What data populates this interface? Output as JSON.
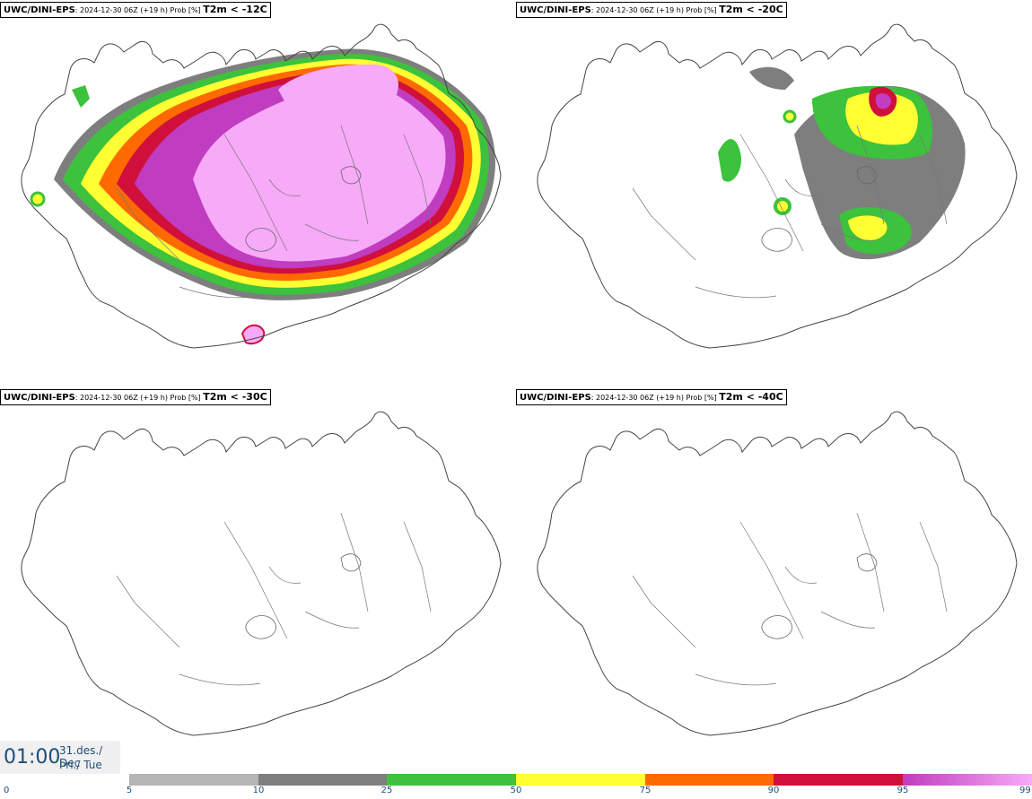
{
  "panels": [
    {
      "model": "UWC/DINI-EPS",
      "info": ": 2024-12-30 06Z (+19 h) Prob [%] ",
      "variable": "T2m < -12C"
    },
    {
      "model": "UWC/DINI-EPS",
      "info": ": 2024-12-30 06Z (+19 h) Prob [%] ",
      "variable": "T2m < -20C"
    },
    {
      "model": "UWC/DINI-EPS",
      "info": ": 2024-12-30 06Z (+19 h) Prob [%] ",
      "variable": "T2m < -30C"
    },
    {
      "model": "UWC/DINI-EPS",
      "info": ": 2024-12-30 06Z (+19 h) Prob [%] ",
      "variable": "T2m < -40C"
    }
  ],
  "time": {
    "clock": "01:00",
    "date_line1": "31.des./ Dec",
    "date_line2": "Þri./ Tue"
  },
  "legend": {
    "ticks": [
      "0",
      "5",
      "10",
      "25",
      "50",
      "75",
      "90",
      "95",
      "99"
    ],
    "segments": [
      {
        "from": "5",
        "to": "10",
        "color": "#b5b5b5"
      },
      {
        "from": "10",
        "to": "25",
        "color": "#7e7e7e"
      },
      {
        "from": "25",
        "to": "50",
        "color": "#3cc23c"
      },
      {
        "from": "50",
        "to": "75",
        "color": "#ffff33"
      },
      {
        "from": "75",
        "to": "90",
        "color": "#ff6a00"
      },
      {
        "from": "90",
        "to": "95",
        "color": "#d0103a"
      },
      {
        "from": "95",
        "to": "99",
        "color": "#c03cc0",
        "gradient_to": "#f7aaf7"
      }
    ]
  },
  "colors": {
    "prob_5": "#b5b5b5",
    "prob_10": "#7e7e7e",
    "prob_25": "#3cc23c",
    "prob_50": "#ffff33",
    "prob_75": "#ff6a00",
    "prob_90": "#d0103a",
    "prob_95": "#c03cc0",
    "prob_99": "#f7aaf7"
  }
}
